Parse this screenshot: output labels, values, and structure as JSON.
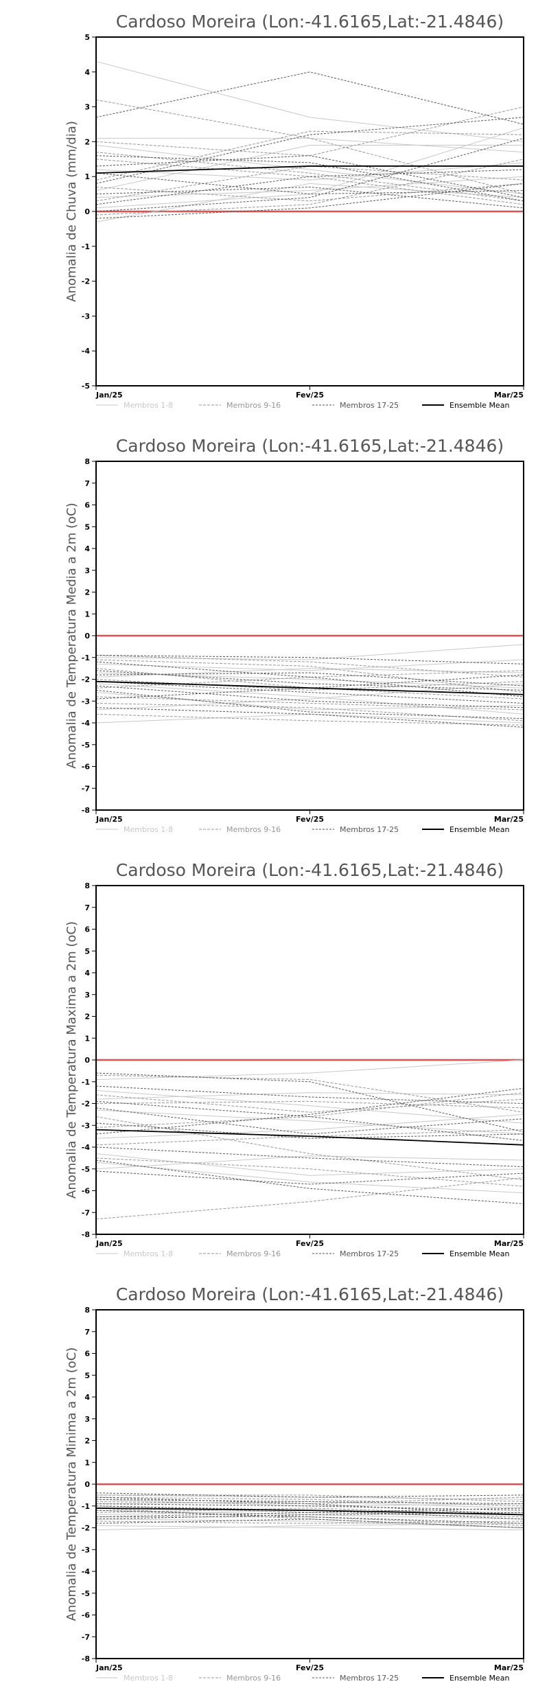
{
  "colors": {
    "reference_line": "#e05050",
    "frame": "#000000",
    "members_1_8": "#c8c8c8",
    "members_9_16": "#969696",
    "members_17_25": "#555555",
    "ensemble_mean": "#000000",
    "title_text": "#555555"
  },
  "x_ticks": [
    "Jan/25",
    "Fev/25",
    "Mar/25"
  ],
  "legend": {
    "members_1_8": "Membros 1-8",
    "members_9_16": "Membros 9-16",
    "members_17_25": "Membros 17-25",
    "ensemble_mean": "Ensemble Mean"
  },
  "chart_data": [
    {
      "type": "line",
      "title": "Cardoso Moreira (Lon:-41.6165,Lat:-21.4846)",
      "ylabel": "Anomalia de Chuva (mm/dia)",
      "xlabel": "",
      "categories": [
        "Jan/25",
        "Fev/25",
        "Mar/25"
      ],
      "ylim": [
        -5,
        5
      ],
      "yticks": [
        -5,
        -4,
        -3,
        -2,
        -1,
        0,
        1,
        2,
        3,
        4,
        5
      ],
      "reference_value": 0,
      "grid": false,
      "legend_position": "bottom",
      "series": [
        {
          "group": "members_1_8",
          "values": [
            4.3,
            2.7,
            2.0
          ]
        },
        {
          "group": "members_1_8",
          "values": [
            2.1,
            2.1,
            1.7
          ]
        },
        {
          "group": "members_1_8",
          "values": [
            1.9,
            1.2,
            0.5
          ]
        },
        {
          "group": "members_1_8",
          "values": [
            1.2,
            0.9,
            1.4
          ]
        },
        {
          "group": "members_1_8",
          "values": [
            0.6,
            1.9,
            1.9
          ]
        },
        {
          "group": "members_1_8",
          "values": [
            0.4,
            0.6,
            1.0
          ]
        },
        {
          "group": "members_1_8",
          "values": [
            0.1,
            0.5,
            2.4
          ]
        },
        {
          "group": "members_1_8",
          "values": [
            -0.3,
            0.8,
            0.4
          ]
        },
        {
          "group": "members_9_16",
          "values": [
            3.2,
            2.1,
            0.5
          ]
        },
        {
          "group": "members_9_16",
          "values": [
            2.0,
            1.6,
            3.0
          ]
        },
        {
          "group": "members_9_16",
          "values": [
            1.5,
            1.0,
            0.2
          ]
        },
        {
          "group": "members_9_16",
          "values": [
            0.9,
            2.3,
            2.2
          ]
        },
        {
          "group": "members_9_16",
          "values": [
            0.7,
            0.3,
            0.8
          ]
        },
        {
          "group": "members_9_16",
          "values": [
            0.3,
            1.3,
            0.9
          ]
        },
        {
          "group": "members_9_16",
          "values": [
            -0.1,
            0.2,
            1.5
          ]
        },
        {
          "group": "members_9_16",
          "values": [
            1.7,
            1.1,
            0.3
          ]
        },
        {
          "group": "members_17_25",
          "values": [
            2.7,
            4.0,
            2.5
          ]
        },
        {
          "group": "members_17_25",
          "values": [
            1.6,
            1.4,
            0.3
          ]
        },
        {
          "group": "members_17_25",
          "values": [
            1.1,
            0.5,
            0.6
          ]
        },
        {
          "group": "members_17_25",
          "values": [
            0.8,
            2.2,
            2.7
          ]
        },
        {
          "group": "members_17_25",
          "values": [
            0.5,
            0.7,
            0.1
          ]
        },
        {
          "group": "members_17_25",
          "values": [
            0.2,
            1.0,
            1.2
          ]
        },
        {
          "group": "members_17_25",
          "values": [
            0.0,
            0.4,
            2.1
          ]
        },
        {
          "group": "members_17_25",
          "values": [
            -0.2,
            0.1,
            0.8
          ]
        },
        {
          "group": "members_17_25",
          "values": [
            1.3,
            1.6,
            0.4
          ]
        },
        {
          "group": "ensemble_mean",
          "values": [
            1.1,
            1.3,
            1.3
          ]
        }
      ]
    },
    {
      "type": "line",
      "title": "Cardoso Moreira (Lon:-41.6165,Lat:-21.4846)",
      "ylabel": "Anomalia de Temperatura Media a 2m (oC)",
      "xlabel": "",
      "categories": [
        "Jan/25",
        "Fev/25",
        "Mar/25"
      ],
      "ylim": [
        -8,
        8
      ],
      "yticks": [
        -8,
        -7,
        -6,
        -5,
        -4,
        -3,
        -2,
        -1,
        0,
        1,
        2,
        3,
        4,
        5,
        6,
        7,
        8
      ],
      "reference_value": 0,
      "grid": false,
      "legend_position": "bottom",
      "series": [
        {
          "group": "members_1_8",
          "values": [
            -1.0,
            -1.1,
            -0.4
          ]
        },
        {
          "group": "members_1_8",
          "values": [
            -1.7,
            -2.0,
            -2.4
          ]
        },
        {
          "group": "members_1_8",
          "values": [
            -2.6,
            -3.4,
            -3.2
          ]
        },
        {
          "group": "members_1_8",
          "values": [
            -4.0,
            -3.6,
            -4.0
          ]
        },
        {
          "group": "members_1_8",
          "values": [
            -1.3,
            -1.6,
            -1.1
          ]
        },
        {
          "group": "members_1_8",
          "values": [
            -2.2,
            -2.8,
            -3.6
          ]
        },
        {
          "group": "members_1_8",
          "values": [
            -3.4,
            -2.9,
            -2.2
          ]
        },
        {
          "group": "members_1_8",
          "values": [
            -1.9,
            -1.5,
            -1.7
          ]
        },
        {
          "group": "members_9_16",
          "values": [
            -0.9,
            -1.2,
            -1.9
          ]
        },
        {
          "group": "members_9_16",
          "values": [
            -1.5,
            -2.4,
            -2.9
          ]
        },
        {
          "group": "members_9_16",
          "values": [
            -2.4,
            -1.9,
            -1.6
          ]
        },
        {
          "group": "members_9_16",
          "values": [
            -3.1,
            -3.3,
            -3.9
          ]
        },
        {
          "group": "members_9_16",
          "values": [
            -1.1,
            -1.4,
            -2.6
          ]
        },
        {
          "group": "members_9_16",
          "values": [
            -2.0,
            -2.5,
            -2.1
          ]
        },
        {
          "group": "members_9_16",
          "values": [
            -2.8,
            -3.1,
            -3.4
          ]
        },
        {
          "group": "members_9_16",
          "values": [
            -3.6,
            -3.9,
            -4.1
          ]
        },
        {
          "group": "members_17_25",
          "values": [
            -0.9,
            -1.0,
            -1.3
          ]
        },
        {
          "group": "members_17_25",
          "values": [
            -1.2,
            -1.9,
            -2.8
          ]
        },
        {
          "group": "members_17_25",
          "values": [
            -1.6,
            -2.2,
            -2.5
          ]
        },
        {
          "group": "members_17_25",
          "values": [
            -2.1,
            -2.6,
            -3.1
          ]
        },
        {
          "group": "members_17_25",
          "values": [
            -2.5,
            -3.5,
            -3.8
          ]
        },
        {
          "group": "members_17_25",
          "values": [
            -2.9,
            -2.4,
            -1.8
          ]
        },
        {
          "group": "members_17_25",
          "values": [
            -3.3,
            -3.6,
            -4.2
          ]
        },
        {
          "group": "members_17_25",
          "values": [
            -1.8,
            -1.7,
            -2.3
          ]
        },
        {
          "group": "members_17_25",
          "values": [
            -2.3,
            -3.0,
            -3.3
          ]
        },
        {
          "group": "ensemble_mean",
          "values": [
            -2.1,
            -2.4,
            -2.7
          ]
        }
      ]
    },
    {
      "type": "line",
      "title": "Cardoso Moreira (Lon:-41.6165,Lat:-21.4846)",
      "ylabel": "Anomalia de Temperatura Maxima a 2m (oC)",
      "xlabel": "",
      "categories": [
        "Jan/25",
        "Fev/25",
        "Mar/25"
      ],
      "ylim": [
        -8,
        8
      ],
      "yticks": [
        -8,
        -7,
        -6,
        -5,
        -4,
        -3,
        -2,
        -1,
        0,
        1,
        2,
        3,
        4,
        5,
        6,
        7,
        8
      ],
      "reference_value": 0,
      "grid": false,
      "legend_position": "bottom",
      "series": [
        {
          "group": "members_1_8",
          "values": [
            -0.9,
            -0.6,
            0.0
          ]
        },
        {
          "group": "members_1_8",
          "values": [
            -1.8,
            -1.5,
            -1.6
          ]
        },
        {
          "group": "members_1_8",
          "values": [
            -4.3,
            -5.3,
            -5.0
          ]
        },
        {
          "group": "members_1_8",
          "values": [
            -5.0,
            -4.4,
            -4.6
          ]
        },
        {
          "group": "members_1_8",
          "values": [
            -2.3,
            -2.8,
            -3.4
          ]
        },
        {
          "group": "members_1_8",
          "values": [
            -3.6,
            -3.2,
            -2.5
          ]
        },
        {
          "group": "members_1_8",
          "values": [
            -1.4,
            -2.1,
            -2.9
          ]
        },
        {
          "group": "members_1_8",
          "values": [
            -4.7,
            -5.6,
            -6.1
          ]
        },
        {
          "group": "members_9_16",
          "values": [
            -0.7,
            -0.9,
            -2.4
          ]
        },
        {
          "group": "members_9_16",
          "values": [
            -1.6,
            -2.4,
            -1.8
          ]
        },
        {
          "group": "members_9_16",
          "values": [
            -2.6,
            -4.3,
            -5.5
          ]
        },
        {
          "group": "members_9_16",
          "values": [
            -3.9,
            -3.5,
            -3.2
          ]
        },
        {
          "group": "members_9_16",
          "values": [
            -4.5,
            -5.0,
            -5.8
          ]
        },
        {
          "group": "members_9_16",
          "values": [
            -7.3,
            -6.5,
            -5.4
          ]
        },
        {
          "group": "members_9_16",
          "values": [
            -2.0,
            -1.9,
            -2.2
          ]
        },
        {
          "group": "members_9_16",
          "values": [
            -3.1,
            -2.6,
            -1.5
          ]
        },
        {
          "group": "members_17_25",
          "values": [
            -0.6,
            -1.0,
            -3.3
          ]
        },
        {
          "group": "members_17_25",
          "values": [
            -1.2,
            -1.7,
            -2.0
          ]
        },
        {
          "group": "members_17_25",
          "values": [
            -2.9,
            -3.6,
            -3.4
          ]
        },
        {
          "group": "members_17_25",
          "values": [
            -4.6,
            -5.9,
            -6.6
          ]
        },
        {
          "group": "members_17_25",
          "values": [
            -5.1,
            -5.7,
            -5.2
          ]
        },
        {
          "group": "members_17_25",
          "values": [
            -3.4,
            -2.5,
            -1.3
          ]
        },
        {
          "group": "members_17_25",
          "values": [
            -1.9,
            -2.6,
            -3.7
          ]
        },
        {
          "group": "members_17_25",
          "values": [
            -4.0,
            -4.5,
            -4.9
          ]
        },
        {
          "group": "members_17_25",
          "values": [
            -2.2,
            -3.4,
            -2.7
          ]
        },
        {
          "group": "ensemble_mean",
          "values": [
            -3.2,
            -3.5,
            -3.9
          ]
        }
      ]
    },
    {
      "type": "line",
      "title": "Cardoso Moreira (Lon:-41.6165,Lat:-21.4846)",
      "ylabel": "Anomalia de Temperatura Minima a 2m (oC)",
      "xlabel": "",
      "categories": [
        "Jan/25",
        "Fev/25",
        "Mar/25"
      ],
      "ylim": [
        -8,
        8
      ],
      "yticks": [
        -8,
        -7,
        -6,
        -5,
        -4,
        -3,
        -2,
        -1,
        0,
        1,
        2,
        3,
        4,
        5,
        6,
        7,
        8
      ],
      "reference_value": 0,
      "grid": false,
      "legend_position": "bottom",
      "series": [
        {
          "group": "members_1_8",
          "values": [
            -0.5,
            -0.6,
            -0.7
          ]
        },
        {
          "group": "members_1_8",
          "values": [
            -1.2,
            -1.4,
            -1.6
          ]
        },
        {
          "group": "members_1_8",
          "values": [
            -2.1,
            -1.9,
            -1.8
          ]
        },
        {
          "group": "members_1_8",
          "values": [
            -0.9,
            -0.8,
            -1.1
          ]
        },
        {
          "group": "members_1_8",
          "values": [
            -1.6,
            -1.7,
            -2.0
          ]
        },
        {
          "group": "members_1_8",
          "values": [
            -0.7,
            -1.0,
            -0.9
          ]
        },
        {
          "group": "members_1_8",
          "values": [
            -1.4,
            -1.2,
            -1.3
          ]
        },
        {
          "group": "members_1_8",
          "values": [
            -1.9,
            -2.0,
            -2.1
          ]
        },
        {
          "group": "members_9_16",
          "values": [
            -0.6,
            -0.7,
            -1.0
          ]
        },
        {
          "group": "members_9_16",
          "values": [
            -1.0,
            -1.3,
            -1.5
          ]
        },
        {
          "group": "members_9_16",
          "values": [
            -1.5,
            -1.5,
            -1.9
          ]
        },
        {
          "group": "members_9_16",
          "values": [
            -0.8,
            -0.9,
            -0.6
          ]
        },
        {
          "group": "members_9_16",
          "values": [
            -1.3,
            -1.1,
            -1.4
          ]
        },
        {
          "group": "members_9_16",
          "values": [
            -1.7,
            -1.8,
            -1.7
          ]
        },
        {
          "group": "members_9_16",
          "values": [
            -1.1,
            -1.6,
            -2.0
          ]
        },
        {
          "group": "members_9_16",
          "values": [
            -0.5,
            -0.5,
            -0.8
          ]
        },
        {
          "group": "members_17_25",
          "values": [
            -0.4,
            -0.6,
            -0.5
          ]
        },
        {
          "group": "members_17_25",
          "values": [
            -0.9,
            -1.0,
            -1.2
          ]
        },
        {
          "group": "members_17_25",
          "values": [
            -1.2,
            -1.5,
            -1.8
          ]
        },
        {
          "group": "members_17_25",
          "values": [
            -1.5,
            -1.3,
            -1.1
          ]
        },
        {
          "group": "members_17_25",
          "values": [
            -1.8,
            -1.6,
            -2.0
          ]
        },
        {
          "group": "members_17_25",
          "values": [
            -0.7,
            -0.8,
            -0.9
          ]
        },
        {
          "group": "members_17_25",
          "values": [
            -1.0,
            -1.2,
            -1.6
          ]
        },
        {
          "group": "members_17_25",
          "values": [
            -1.6,
            -1.4,
            -1.3
          ]
        },
        {
          "group": "members_17_25",
          "values": [
            -0.6,
            -0.9,
            -1.4
          ]
        },
        {
          "group": "ensemble_mean",
          "values": [
            -1.1,
            -1.2,
            -1.4
          ]
        }
      ]
    }
  ]
}
